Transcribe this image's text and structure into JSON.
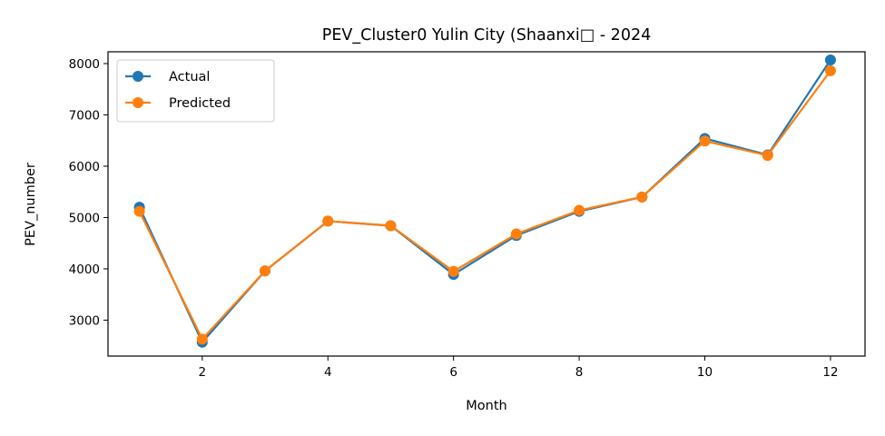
{
  "chart_data": {
    "type": "line",
    "title": "PEV_Cluster0 Yulin City (Shaanxi□ - 2024",
    "xlabel": "Month",
    "ylabel": "PEV_number",
    "xlim": [
      0.5,
      12.55
    ],
    "ylim": [
      2300,
      8230
    ],
    "xticks": [
      2,
      4,
      6,
      8,
      10,
      12
    ],
    "yticks": [
      3000,
      4000,
      5000,
      6000,
      7000,
      8000
    ],
    "legend_position": "top-left",
    "grid": false,
    "x": [
      1,
      2,
      3,
      4,
      5,
      6,
      7,
      8,
      9,
      10,
      11,
      12
    ],
    "series": [
      {
        "name": "Actual",
        "color": "#1f77b4",
        "values": [
          5200,
          2570,
          3960,
          4930,
          4840,
          3890,
          4650,
          5120,
          5400,
          6540,
          6220,
          8070
        ]
      },
      {
        "name": "Predicted",
        "color": "#ff7f0e",
        "values": [
          5120,
          2630,
          3960,
          4930,
          4840,
          3950,
          4680,
          5140,
          5400,
          6490,
          6210,
          7860
        ]
      }
    ]
  }
}
